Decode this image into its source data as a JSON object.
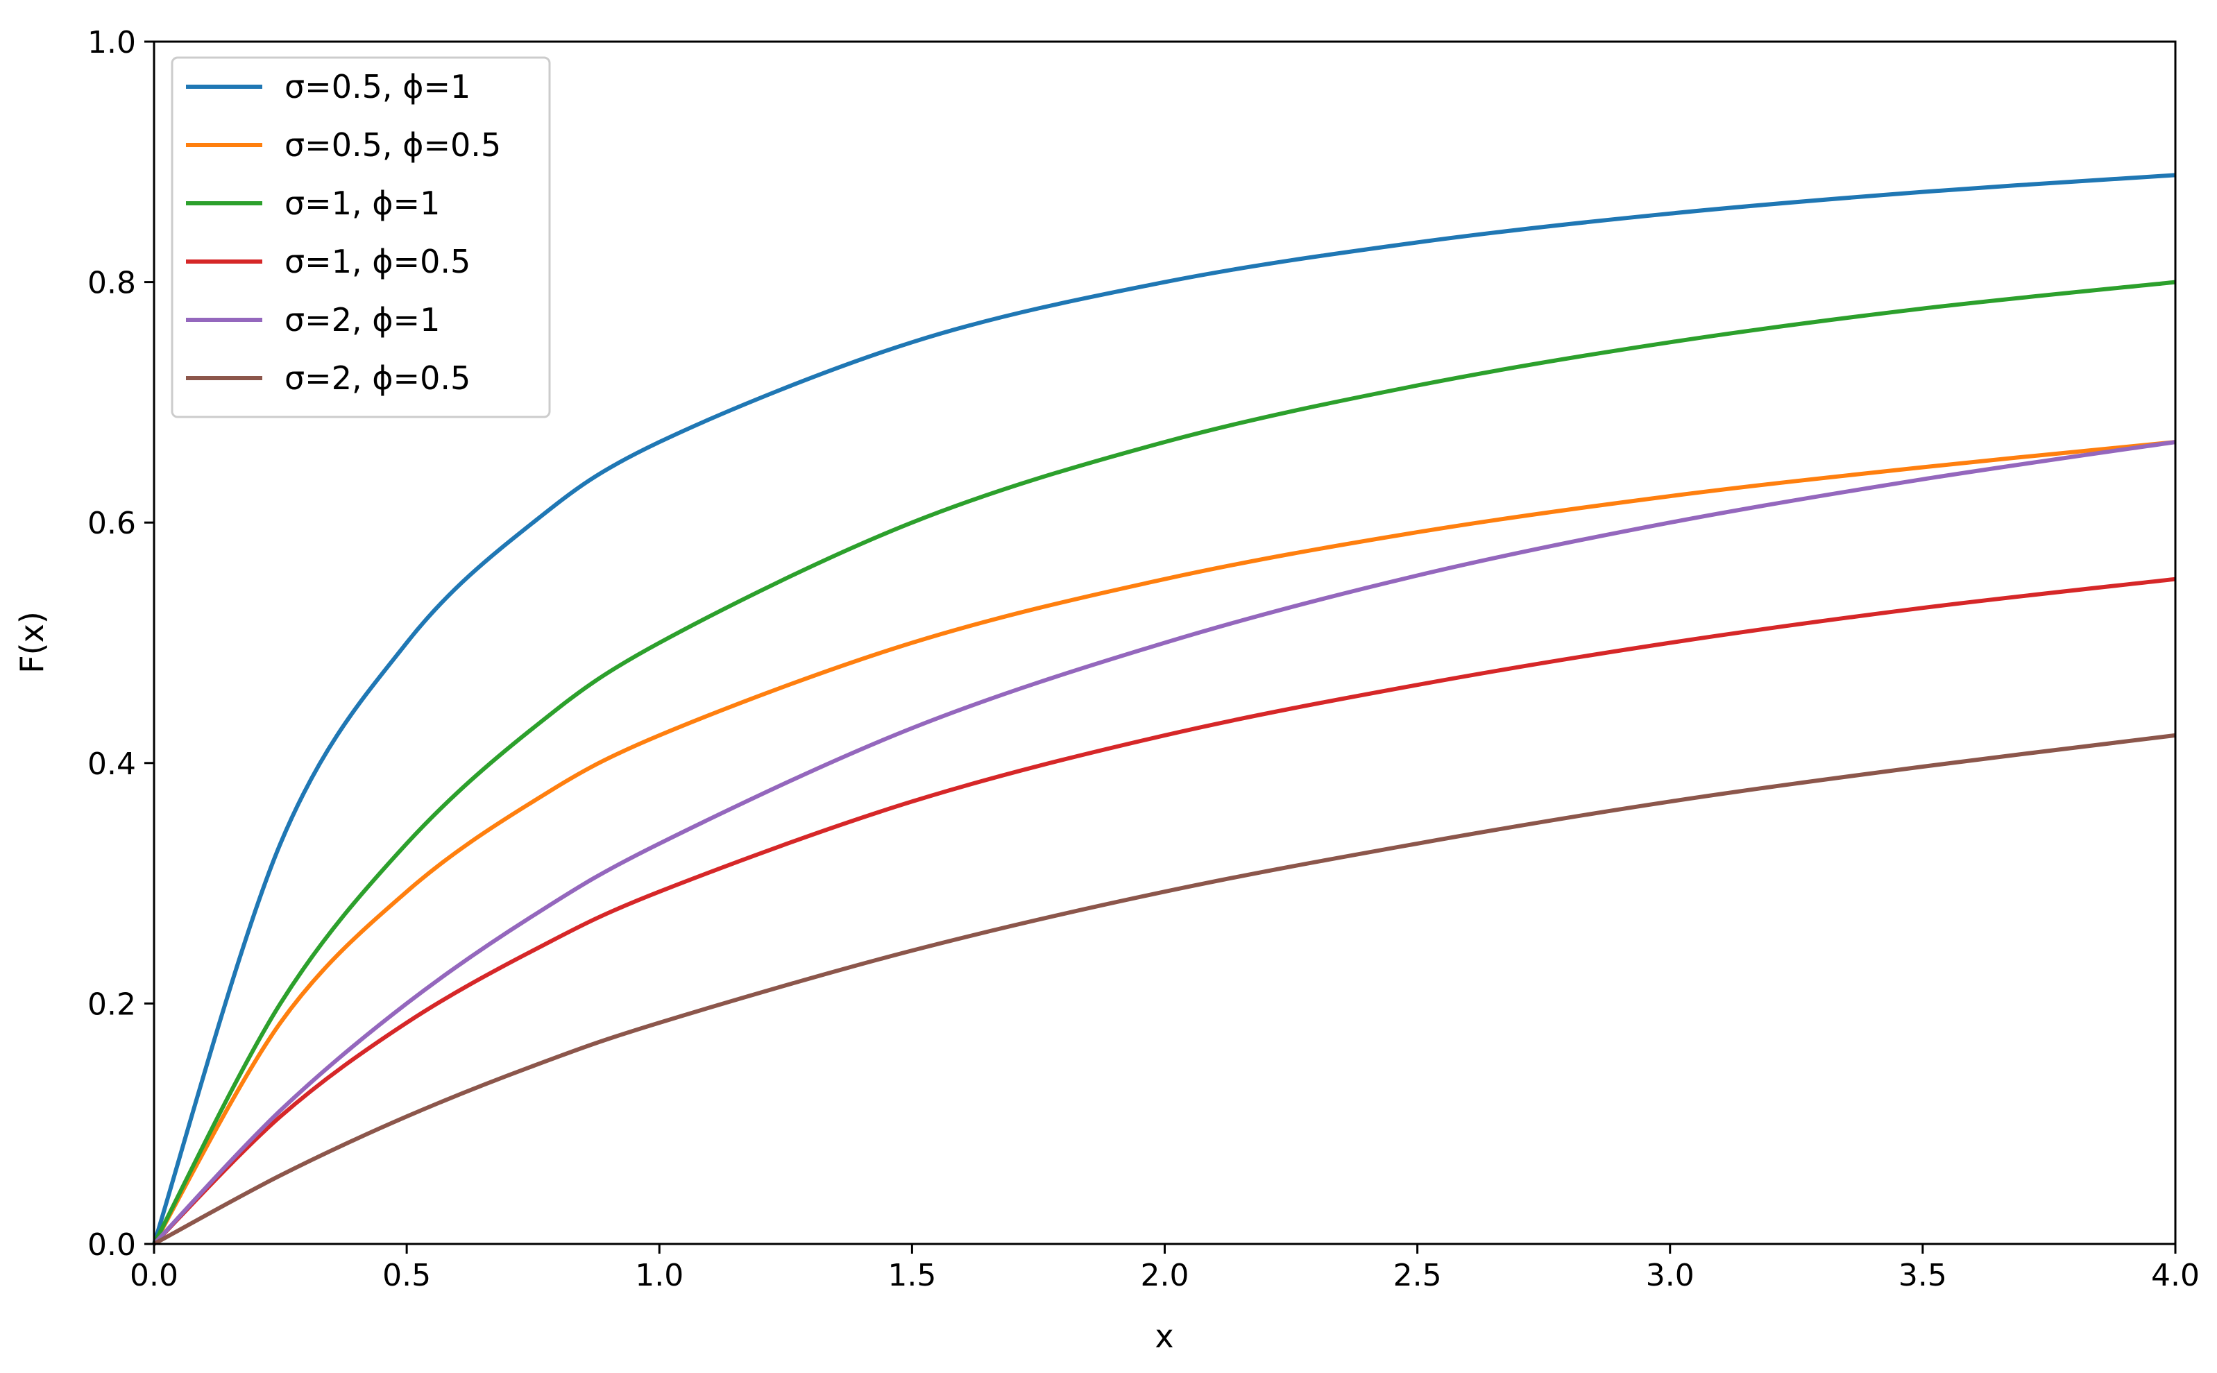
{
  "chart_data": {
    "type": "line",
    "xlabel": "x",
    "ylabel": "F(x)",
    "xlim": [
      0.0,
      4.0
    ],
    "ylim": [
      0.0,
      1.0
    ],
    "x_ticks": [
      "0.0",
      "0.5",
      "1.0",
      "1.5",
      "2.0",
      "2.5",
      "3.0",
      "3.5",
      "4.0"
    ],
    "y_ticks": [
      "0.0",
      "0.2",
      "0.4",
      "0.6",
      "0.8",
      "1.0"
    ],
    "grid": false,
    "legend_position": "top-left",
    "x": [
      0.0,
      0.25,
      0.5,
      0.75,
      1.0,
      1.5,
      2.0,
      2.5,
      3.0,
      3.5,
      4.0
    ],
    "series": [
      {
        "name": "σ=0.5, ϕ=1",
        "color": "#1f77b4",
        "values": [
          0.0,
          0.333,
          0.5,
          0.6,
          0.667,
          0.75,
          0.8,
          0.833,
          0.857,
          0.875,
          0.889
        ]
      },
      {
        "name": "σ=0.5, ϕ=0.5",
        "color": "#ff7f0e",
        "values": [
          0.0,
          0.184,
          0.293,
          0.368,
          0.423,
          0.5,
          0.553,
          0.592,
          0.622,
          0.646,
          0.667
        ]
      },
      {
        "name": "σ=1, ϕ=1",
        "color": "#2ca02c",
        "values": [
          0.0,
          0.2,
          0.333,
          0.429,
          0.5,
          0.6,
          0.667,
          0.714,
          0.75,
          0.778,
          0.8
        ]
      },
      {
        "name": "σ=1, ϕ=0.5",
        "color": "#d62728",
        "values": [
          0.0,
          0.106,
          0.184,
          0.244,
          0.293,
          0.368,
          0.423,
          0.465,
          0.5,
          0.529,
          0.553
        ]
      },
      {
        "name": "σ=2, ϕ=1",
        "color": "#9467bd",
        "values": [
          0.0,
          0.111,
          0.2,
          0.273,
          0.333,
          0.429,
          0.5,
          0.556,
          0.6,
          0.636,
          0.667
        ]
      },
      {
        "name": "σ=2, ϕ=0.5",
        "color": "#8c564b",
        "values": [
          0.0,
          0.057,
          0.106,
          0.148,
          0.184,
          0.244,
          0.293,
          0.333,
          0.368,
          0.397,
          0.423
        ]
      }
    ]
  }
}
